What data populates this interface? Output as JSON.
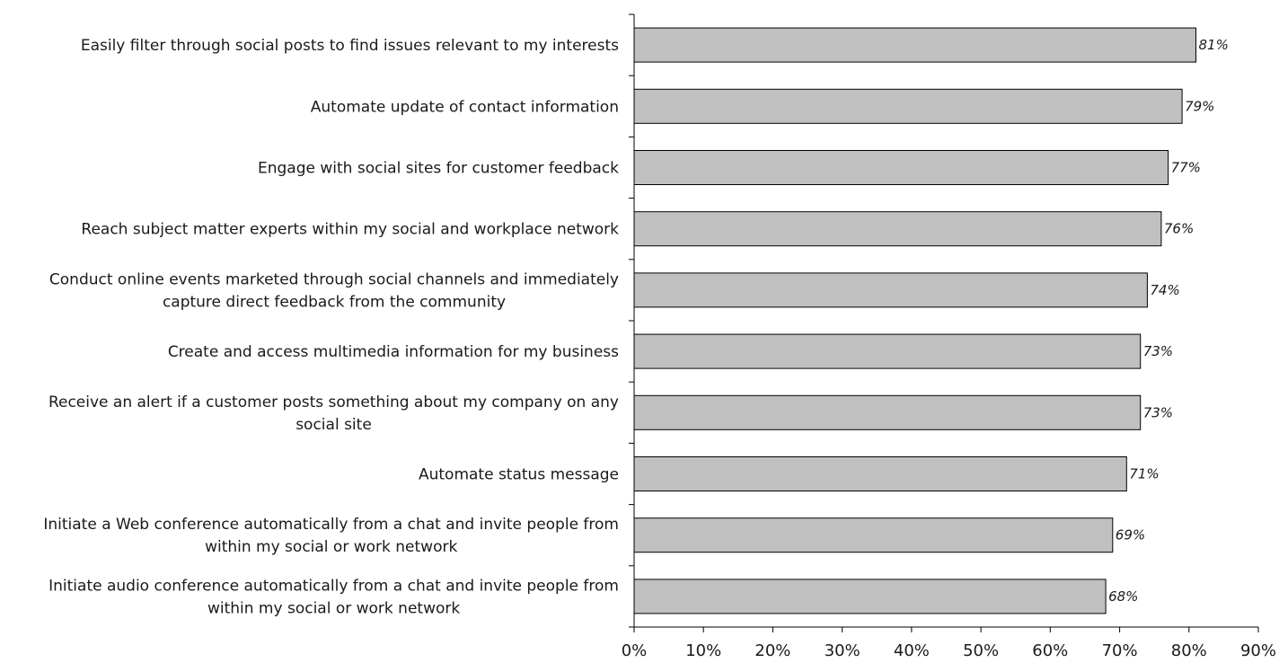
{
  "chart_data": {
    "type": "bar",
    "orientation": "horizontal",
    "categories": [
      [
        "Easily filter through social posts to find issues relevant to my interests"
      ],
      [
        "Automate update of contact information"
      ],
      [
        "Engage with social sites for customer feedback"
      ],
      [
        "Reach subject matter experts within my social and workplace network"
      ],
      [
        "Conduct online events marketed through social channels and immediately",
        "capture direct feedback from the community"
      ],
      [
        "Create and access multimedia information for my business"
      ],
      [
        "Receive an alert if a customer posts something about my company on any",
        "social site"
      ],
      [
        "Automate status message"
      ],
      [
        "Initiate a Web conference automatically from a chat and invite people from",
        "within my social or work network"
      ],
      [
        "Initiate audio conference automatically from a chat and invite people from",
        "within my social or work network"
      ]
    ],
    "values": [
      81,
      79,
      77,
      76,
      74,
      73,
      73,
      71,
      69,
      68
    ],
    "data_labels": [
      "81%",
      "79%",
      "77%",
      "76%",
      "74%",
      "73%",
      "73%",
      "71%",
      "69%",
      "68%"
    ],
    "xlim": [
      0,
      90
    ],
    "x_ticks": [
      0,
      10,
      20,
      30,
      40,
      50,
      60,
      70,
      80,
      90
    ],
    "x_tick_labels": [
      "0%",
      "10%",
      "20%",
      "30%",
      "40%",
      "50%",
      "60%",
      "70%",
      "80%",
      "90%"
    ],
    "title": "",
    "xlabel": "",
    "ylabel": "",
    "grid": false,
    "legend": "none",
    "bar_color": "#c0c0c0",
    "bar_edge_color": "#000000"
  }
}
